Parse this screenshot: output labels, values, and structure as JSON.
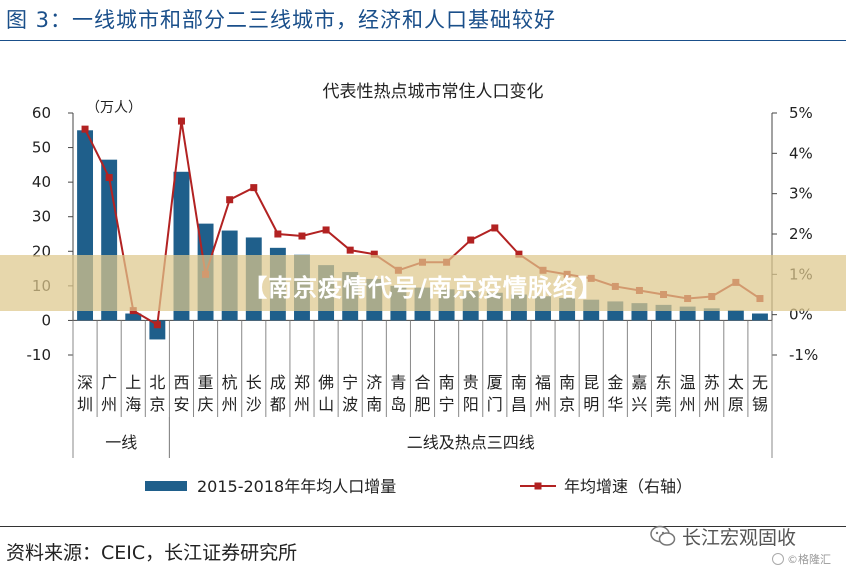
{
  "header": {
    "title": "图 3：一线城市和部分二三线城市，经济和人口基础较好"
  },
  "banner": {
    "text": "【南京疫情代号/南京疫情脉络】"
  },
  "footer": {
    "source": "资料来源：CEIC，长江证券研究所"
  },
  "watermark": {
    "account": "长江宏观固收",
    "site": "©格隆汇",
    "icons": [
      "wechat-icon",
      "gelonghui-icon"
    ]
  },
  "colors": {
    "bar": "#1f5f8b",
    "line": "#b22222",
    "title": "#1a4f8a",
    "banner": "#dec88c"
  },
  "chart_data": {
    "type": "bar",
    "title": "代表性热点城市常住人口变化",
    "unit_label": "（万人）",
    "categories": [
      "深圳",
      "广州",
      "上海",
      "北京",
      "西安",
      "重庆",
      "杭州",
      "长沙",
      "成都",
      "郑州",
      "佛山",
      "宁波",
      "济南",
      "青岛",
      "合肥",
      "南宁",
      "贵阳",
      "厦门",
      "南昌",
      "福州",
      "南京",
      "昆明",
      "金华",
      "嘉兴",
      "东莞",
      "温州",
      "苏州",
      "太原",
      "无锡"
    ],
    "category_lines": [
      [
        "深",
        "圳"
      ],
      [
        "广",
        "州"
      ],
      [
        "上",
        "海"
      ],
      [
        "北",
        "京"
      ],
      [
        "西",
        "安"
      ],
      [
        "重",
        "庆"
      ],
      [
        "杭",
        "州"
      ],
      [
        "长",
        "沙"
      ],
      [
        "成",
        "都"
      ],
      [
        "郑",
        "州"
      ],
      [
        "佛",
        "山"
      ],
      [
        "宁",
        "波"
      ],
      [
        "济",
        "南"
      ],
      [
        "青",
        "岛"
      ],
      [
        "合",
        "肥"
      ],
      [
        "南",
        "宁"
      ],
      [
        "贵",
        "阳"
      ],
      [
        "厦",
        "门"
      ],
      [
        "南",
        "昌"
      ],
      [
        "福",
        "州"
      ],
      [
        "南",
        "京"
      ],
      [
        "昆",
        "明"
      ],
      [
        "金",
        "华"
      ],
      [
        "嘉",
        "兴"
      ],
      [
        "东",
        "莞"
      ],
      [
        "温",
        "州"
      ],
      [
        "苏",
        "州"
      ],
      [
        "太",
        "原"
      ],
      [
        "无",
        "锡"
      ]
    ],
    "groups": [
      {
        "label": "一线",
        "count": 4
      },
      {
        "label": "二线及热点三四线",
        "count": 25
      }
    ],
    "series": [
      {
        "name": "2015-2018年年均人口增量",
        "kind": "bar",
        "axis": "left",
        "values": [
          55,
          46.5,
          2,
          -5.5,
          43,
          28,
          26,
          24,
          21,
          19,
          16,
          14,
          12,
          10,
          9.5,
          9,
          8.5,
          8,
          7.5,
          7,
          6.5,
          6,
          5.5,
          5,
          4.5,
          4,
          3.5,
          3,
          2
        ]
      },
      {
        "name": "年均增速（右轴）",
        "kind": "line",
        "axis": "right",
        "values": [
          4.6,
          3.4,
          0.1,
          -0.25,
          4.8,
          1.0,
          2.85,
          3.15,
          2.0,
          1.95,
          2.1,
          1.6,
          1.5,
          1.1,
          1.3,
          1.3,
          1.85,
          2.15,
          1.5,
          1.1,
          1.0,
          0.9,
          0.7,
          0.6,
          0.5,
          0.4,
          0.45,
          0.8,
          0.4
        ]
      }
    ],
    "y_left": {
      "min": -10,
      "max": 60,
      "ticks": [
        -10,
        0,
        10,
        20,
        30,
        40,
        50,
        60
      ]
    },
    "y_right": {
      "min": -1,
      "max": 5,
      "ticks": [
        "-1%",
        "0%",
        "1%",
        "2%",
        "3%",
        "4%",
        "5%"
      ],
      "tick_values": [
        -1,
        0,
        1,
        2,
        3,
        4,
        5
      ]
    },
    "legend": [
      {
        "label": "2015-2018年年均人口增量",
        "kind": "bar"
      },
      {
        "label": "年均增速（右轴）",
        "kind": "line"
      }
    ],
    "legend_position": "bottom",
    "grid": false
  }
}
